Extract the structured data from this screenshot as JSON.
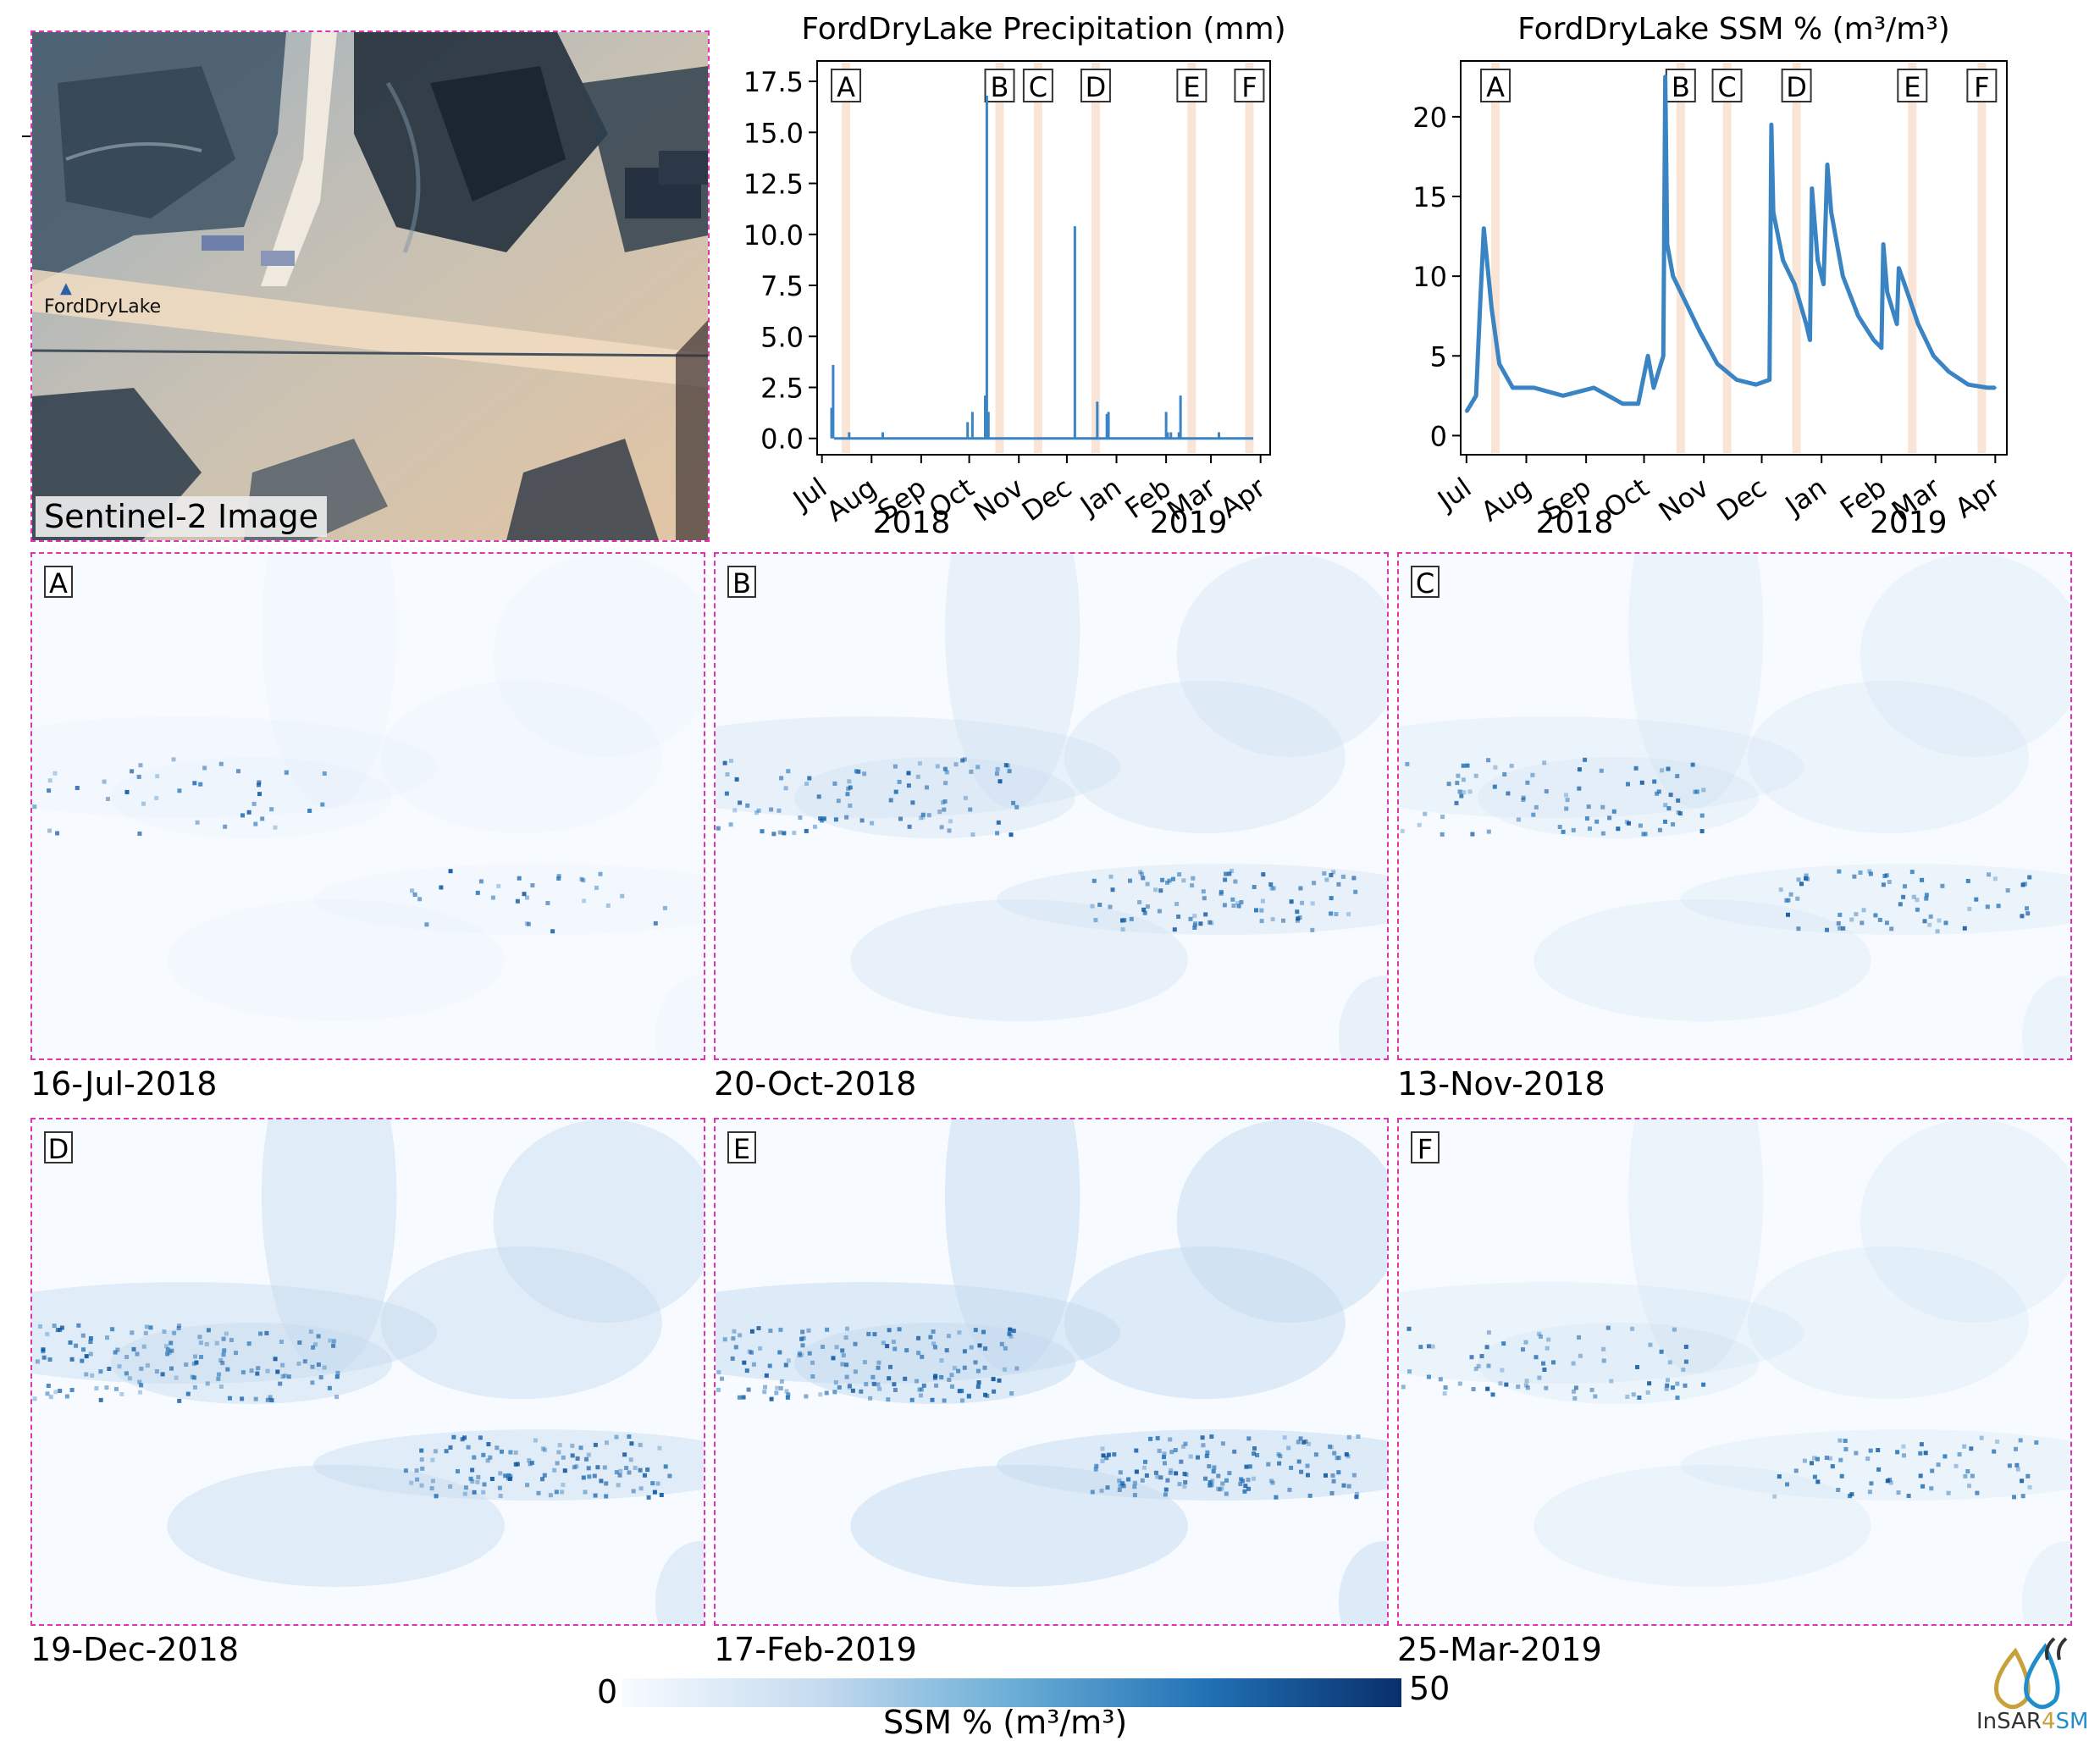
{
  "sentinel": {
    "label": "Sentinel-2 Image",
    "site_label": "FordDryLake"
  },
  "chart_data": [
    {
      "type": "bar",
      "title": "FordDryLake Precipitation (mm)",
      "xlabel": "",
      "ylabel": "",
      "x_range": [
        "2018-06-28",
        "2019-04-07"
      ],
      "ylim": [
        -0.8,
        18.5
      ],
      "yticks": [
        "0.0",
        "2.5",
        "5.0",
        "7.5",
        "10.0",
        "12.5",
        "15.0",
        "17.5"
      ],
      "ytick_values": [
        0,
        2.5,
        5,
        7.5,
        10,
        12.5,
        15,
        17.5
      ],
      "xticks": [
        "Jul",
        "Aug",
        "Sep",
        "Oct",
        "Nov",
        "Dec",
        "Jan",
        "Feb",
        "Mar",
        "Apr"
      ],
      "xtick_dates": [
        "2018-07-01",
        "2018-08-01",
        "2018-09-01",
        "2018-10-01",
        "2018-11-01",
        "2018-12-01",
        "2019-01-01",
        "2019-02-01",
        "2019-03-01",
        "2019-04-01"
      ],
      "year_labels": [
        "2018",
        "2019"
      ],
      "x": [
        "2018-07-07",
        "2018-07-08",
        "2018-07-18",
        "2018-08-08",
        "2018-09-30",
        "2018-10-03",
        "2018-10-11",
        "2018-10-12",
        "2018-10-13",
        "2018-12-06",
        "2018-12-20",
        "2018-12-26",
        "2018-12-27",
        "2019-02-01",
        "2019-02-02",
        "2019-02-04",
        "2019-02-09",
        "2019-02-10",
        "2019-03-06"
      ],
      "values": [
        1.5,
        3.6,
        0.3,
        0.3,
        0.8,
        1.3,
        2.1,
        16.8,
        1.3,
        10.4,
        1.8,
        1.2,
        1.3,
        1.3,
        0.3,
        0.3,
        0.3,
        2.1,
        0.3
      ],
      "markers": [
        {
          "label": "A",
          "date": "2018-07-16"
        },
        {
          "label": "B",
          "date": "2018-10-20"
        },
        {
          "label": "C",
          "date": "2018-11-13"
        },
        {
          "label": "D",
          "date": "2018-12-19"
        },
        {
          "label": "E",
          "date": "2019-02-17"
        },
        {
          "label": "F",
          "date": "2019-03-25"
        }
      ]
    },
    {
      "type": "line",
      "title": "FordDryLake SSM % (m³/m³)",
      "xlabel": "",
      "ylabel": "",
      "x_range": [
        "2018-06-28",
        "2019-04-07"
      ],
      "ylim": [
        -1.2,
        23.5
      ],
      "yticks": [
        "0",
        "5",
        "10",
        "15",
        "20"
      ],
      "ytick_values": [
        0,
        5,
        10,
        15,
        20
      ],
      "xticks": [
        "Jul",
        "Aug",
        "Sep",
        "Oct",
        "Nov",
        "Dec",
        "Jan",
        "Feb",
        "Mar",
        "Apr"
      ],
      "xtick_dates": [
        "2018-07-01",
        "2018-08-01",
        "2018-09-01",
        "2018-10-01",
        "2018-11-01",
        "2018-12-01",
        "2019-01-01",
        "2019-02-01",
        "2019-03-01",
        "2019-04-01"
      ],
      "year_labels": [
        "2018",
        "2019"
      ],
      "x": [
        "2018-07-01",
        "2018-07-06",
        "2018-07-08",
        "2018-07-10",
        "2018-07-14",
        "2018-07-18",
        "2018-07-25",
        "2018-08-05",
        "2018-08-20",
        "2018-09-05",
        "2018-09-20",
        "2018-09-28",
        "2018-10-03",
        "2018-10-06",
        "2018-10-11",
        "2018-10-12",
        "2018-10-13",
        "2018-10-16",
        "2018-10-22",
        "2018-10-30",
        "2018-11-08",
        "2018-11-18",
        "2018-11-28",
        "2018-12-05",
        "2018-12-06",
        "2018-12-07",
        "2018-12-12",
        "2018-12-18",
        "2018-12-24",
        "2018-12-26",
        "2018-12-27",
        "2018-12-30",
        "2019-01-02",
        "2019-01-04",
        "2019-01-06",
        "2019-01-12",
        "2019-01-20",
        "2019-01-28",
        "2019-02-01",
        "2019-02-02",
        "2019-02-04",
        "2019-02-09",
        "2019-02-10",
        "2019-02-13",
        "2019-02-20",
        "2019-02-28",
        "2019-03-08",
        "2019-03-18",
        "2019-03-28",
        "2019-04-01"
      ],
      "values": [
        1.5,
        2.5,
        8.0,
        13.0,
        8.0,
        4.5,
        3.0,
        3.0,
        2.5,
        3.0,
        2.0,
        2.0,
        5.0,
        3.0,
        5.0,
        22.5,
        12.0,
        10.0,
        8.5,
        6.5,
        4.5,
        3.5,
        3.2,
        3.5,
        19.5,
        14.0,
        11.0,
        9.5,
        7.0,
        6.0,
        15.5,
        11.0,
        9.5,
        17.0,
        14.0,
        10.0,
        7.5,
        6.0,
        5.5,
        12.0,
        9.0,
        7.0,
        10.5,
        9.5,
        7.0,
        5.0,
        4.0,
        3.2,
        3.0,
        3.0
      ],
      "markers": [
        {
          "label": "A",
          "date": "2018-07-16"
        },
        {
          "label": "B",
          "date": "2018-10-20"
        },
        {
          "label": "C",
          "date": "2018-11-13"
        },
        {
          "label": "D",
          "date": "2018-12-19"
        },
        {
          "label": "E",
          "date": "2019-02-17"
        },
        {
          "label": "F",
          "date": "2019-03-25"
        }
      ]
    }
  ],
  "maps": [
    {
      "letter": "A",
      "date": "16-Jul-2018",
      "intensity": 0.12
    },
    {
      "letter": "B",
      "date": "20-Oct-2018",
      "intensity": 0.55
    },
    {
      "letter": "C",
      "date": "13-Nov-2018",
      "intensity": 0.42
    },
    {
      "letter": "D",
      "date": "19-Dec-2018",
      "intensity": 0.85
    },
    {
      "letter": "E",
      "date": "17-Feb-2019",
      "intensity": 0.95
    },
    {
      "letter": "F",
      "date": "25-Mar-2019",
      "intensity": 0.4
    }
  ],
  "colorbar": {
    "min": "0",
    "max": "50",
    "label": "SSM % (m³/m³)",
    "colors": [
      "#f7fbff",
      "#c6dbef",
      "#6baed6",
      "#2171b5",
      "#08306b"
    ]
  },
  "logo": {
    "prefix": "InSAR",
    "four": "4",
    "suffix": "SM",
    "colors": {
      "gold": "#c8a13b",
      "blue": "#1f8ecb",
      "dark": "#333333"
    }
  },
  "colors": {
    "line": "#3a84c4",
    "marker_band": "#f9e4d6",
    "frame": "#e033b4"
  }
}
